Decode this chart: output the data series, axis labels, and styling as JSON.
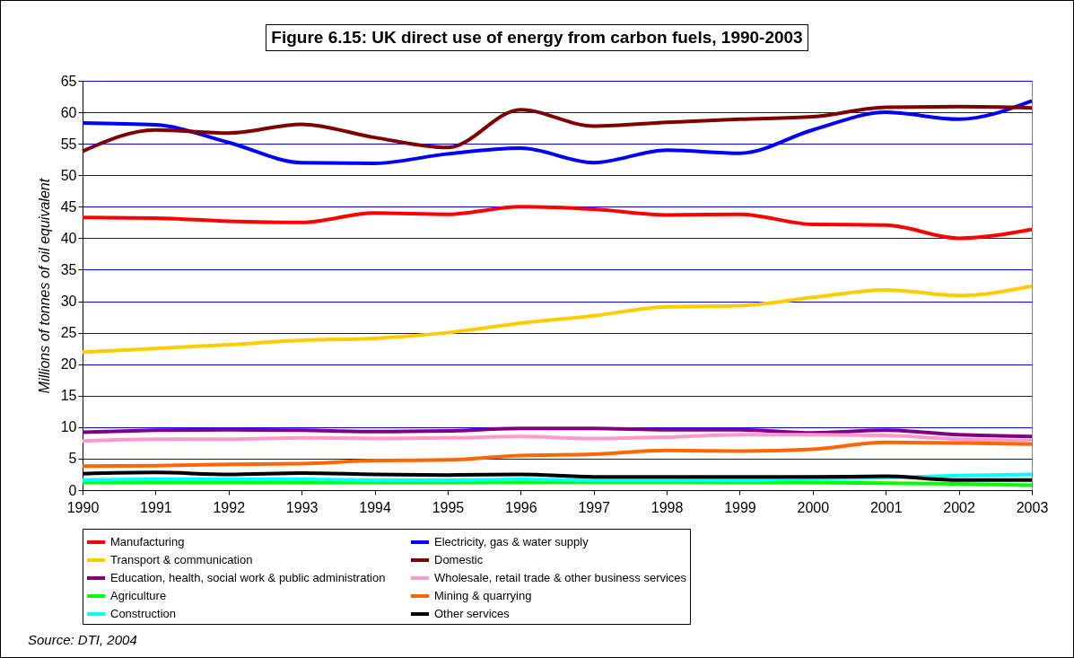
{
  "chart_data": {
    "type": "line",
    "title": "Figure 6.15: UK direct use of energy from carbon fuels, 1990-2003",
    "ylabel": "Millions of tonnes of oil equivalent",
    "x": [
      1990,
      1991,
      1992,
      1993,
      1994,
      1995,
      1996,
      1997,
      1998,
      1999,
      2000,
      2001,
      2002,
      2003
    ],
    "xlim": [
      1990,
      2003
    ],
    "xticks": [
      1990,
      1991,
      1992,
      1993,
      1994,
      1995,
      1996,
      1997,
      1998,
      1999,
      2000,
      2001,
      2002,
      2003
    ],
    "ylim": [
      0,
      65
    ],
    "yticks": [
      0,
      5,
      10,
      15,
      20,
      25,
      30,
      35,
      40,
      45,
      50,
      55,
      60,
      65
    ],
    "grid": "y",
    "legend": "bottom",
    "marker": "none",
    "line_style": "solid",
    "annotations": [
      "Source: DTI, 2004"
    ],
    "series": [
      {
        "name": "Manufacturing",
        "color": "#ff0000",
        "values": [
          43.3,
          43.2,
          42.7,
          42.5,
          44.0,
          43.8,
          45.0,
          44.6,
          43.7,
          43.8,
          42.2,
          42.1,
          40.0,
          41.4
        ]
      },
      {
        "name": "Electricity, gas & water supply",
        "color": "#0000ff",
        "values": [
          58.3,
          58.0,
          55.2,
          52.0,
          51.9,
          53.4,
          54.3,
          52.0,
          54.0,
          53.5,
          57.2,
          60.0,
          58.9,
          61.8
        ]
      },
      {
        "name": "Transport & communication",
        "color": "#ffcc00",
        "values": [
          21.9,
          22.5,
          23.1,
          23.8,
          24.1,
          25.0,
          26.5,
          27.7,
          29.1,
          29.3,
          30.6,
          31.8,
          30.9,
          32.4
        ]
      },
      {
        "name": "Domestic",
        "color": "#800000",
        "values": [
          53.8,
          57.2,
          56.7,
          58.1,
          56.0,
          54.4,
          60.4,
          57.8,
          58.4,
          58.9,
          59.3,
          60.8,
          60.9,
          60.7
        ]
      },
      {
        "name": "Education, health, social work & public administration",
        "color": "#800080",
        "values": [
          9.2,
          9.5,
          9.6,
          9.5,
          9.3,
          9.4,
          9.8,
          9.8,
          9.6,
          9.6,
          9.1,
          9.5,
          8.8,
          8.5
        ]
      },
      {
        "name": "Wholesale, retail trade & other business services",
        "color": "#ff99cc",
        "values": [
          7.8,
          8.1,
          8.1,
          8.3,
          8.2,
          8.3,
          8.5,
          8.2,
          8.4,
          8.8,
          8.8,
          8.7,
          8.1,
          7.9
        ]
      },
      {
        "name": "Agriculture",
        "color": "#00ff00",
        "values": [
          1.2,
          1.2,
          1.2,
          1.2,
          1.2,
          1.2,
          1.3,
          1.3,
          1.3,
          1.2,
          1.2,
          1.1,
          1.0,
          0.8
        ]
      },
      {
        "name": "Mining & quarrying",
        "color": "#ff6600",
        "values": [
          3.8,
          3.9,
          4.1,
          4.2,
          4.7,
          4.8,
          5.5,
          5.7,
          6.3,
          6.2,
          6.5,
          7.6,
          7.5,
          7.3
        ]
      },
      {
        "name": "Construction",
        "color": "#00ffff",
        "values": [
          1.6,
          1.7,
          1.7,
          1.7,
          1.6,
          1.6,
          1.7,
          1.6,
          1.6,
          1.6,
          1.8,
          2.0,
          2.3,
          2.5
        ]
      },
      {
        "name": "Other services",
        "color": "#000000",
        "values": [
          2.6,
          2.8,
          2.5,
          2.7,
          2.5,
          2.4,
          2.5,
          2.1,
          2.1,
          2.1,
          2.1,
          2.2,
          1.6,
          1.6
        ]
      }
    ]
  }
}
